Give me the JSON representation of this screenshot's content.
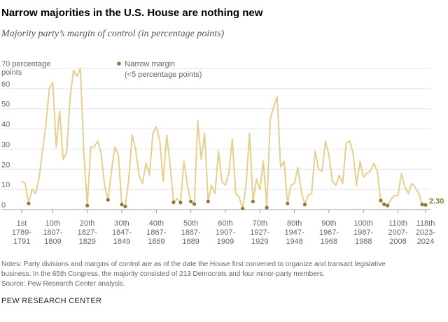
{
  "chart_data": {
    "type": "line",
    "title": "Narrow majorities in the U.S. House are nothing new",
    "subtitle": "Majority party’s margin of control (in percentage points)",
    "legend": [
      "Narrow margin",
      "(<5 percentage points)"
    ],
    "narrow_below": 5,
    "x": [
      1,
      2,
      3,
      4,
      5,
      6,
      7,
      8,
      9,
      10,
      11,
      12,
      13,
      14,
      15,
      16,
      17,
      18,
      19,
      20,
      21,
      22,
      23,
      24,
      25,
      26,
      27,
      28,
      29,
      30,
      31,
      32,
      33,
      34,
      35,
      36,
      37,
      38,
      39,
      40,
      41,
      42,
      43,
      44,
      45,
      46,
      47,
      48,
      49,
      50,
      51,
      52,
      53,
      54,
      55,
      56,
      57,
      58,
      59,
      60,
      61,
      62,
      63,
      64,
      65,
      66,
      67,
      68,
      69,
      70,
      71,
      72,
      73,
      74,
      75,
      76,
      77,
      78,
      79,
      80,
      81,
      82,
      83,
      84,
      85,
      86,
      87,
      88,
      89,
      90,
      91,
      92,
      93,
      94,
      95,
      96,
      97,
      98,
      99,
      100,
      101,
      102,
      103,
      104,
      105,
      106,
      107,
      108,
      109,
      110,
      111,
      112,
      113,
      114,
      115,
      116,
      117,
      118
    ],
    "series": [
      {
        "name": "Margin of control",
        "color": "#e5cf8c",
        "dot_color": "#8c7a3a",
        "values": [
          14,
          13,
          3,
          10,
          8,
          15,
          29,
          42,
          60,
          63,
          31,
          49,
          25,
          28,
          55,
          69,
          66,
          70,
          28,
          2,
          31,
          31,
          34,
          28,
          12,
          4.8,
          19,
          31,
          27,
          2.5,
          1.5,
          15,
          37,
          30,
          17,
          13,
          23,
          17,
          38,
          41,
          34,
          14,
          37,
          22,
          3.6,
          5.5,
          3.5,
          24,
          12,
          4,
          2.7,
          44,
          25,
          38,
          4,
          12,
          8,
          29,
          14,
          12,
          18,
          35,
          8,
          6,
          0.5,
          12,
          38,
          4,
          15,
          10,
          24,
          1,
          45,
          51,
          56,
          21,
          24,
          3,
          12,
          13,
          21,
          9,
          2.5,
          7,
          8,
          29,
          20,
          19,
          34,
          27,
          14,
          12,
          17,
          13,
          33,
          34,
          28,
          12,
          24,
          16,
          18,
          19,
          23,
          19,
          4.5,
          2.6,
          2,
          5,
          7,
          7,
          18,
          11,
          8,
          13,
          11,
          8,
          2.5,
          2.3
        ],
        "end_label": "2.30"
      }
    ],
    "xlim": [
      1,
      118
    ],
    "xticks": [
      {
        "value": 1,
        "label": [
          "1st",
          "1789-",
          "1791"
        ]
      },
      {
        "value": 10,
        "label": [
          "10th",
          "1807-",
          "1809"
        ]
      },
      {
        "value": 20,
        "label": [
          "20th",
          "1827-",
          "1829"
        ]
      },
      {
        "value": 30,
        "label": [
          "30th",
          "1847-",
          "1849"
        ]
      },
      {
        "value": 40,
        "label": [
          "40th",
          "1867-",
          "1869"
        ]
      },
      {
        "value": 50,
        "label": [
          "50th",
          "1887-",
          "1889"
        ]
      },
      {
        "value": 60,
        "label": [
          "60th",
          "1907-",
          "1909"
        ]
      },
      {
        "value": 70,
        "label": [
          "70th",
          "1927-",
          "1929"
        ]
      },
      {
        "value": 80,
        "label": [
          "80th",
          "1947-",
          "1948"
        ]
      },
      {
        "value": 90,
        "label": [
          "90th",
          "1967-",
          "1968"
        ]
      },
      {
        "value": 100,
        "label": [
          "100th",
          "1987-",
          "1988"
        ]
      },
      {
        "value": 110,
        "label": [
          "110th",
          "2007-",
          "2008"
        ]
      },
      {
        "value": 118,
        "label": [
          "118th",
          "2023-",
          "2024"
        ]
      }
    ],
    "ylim": [
      0,
      70
    ],
    "yticks": [
      0,
      10,
      20,
      30,
      40,
      50,
      60,
      {
        "value": 70,
        "label": [
          "70 percentage",
          "points"
        ]
      }
    ],
    "grid": true,
    "notes": [
      "Notes: Party divisions and margins of control are as of the date the House first convened to organize and transact legislative",
      "business. In the 65th Congress, the majority consisted of 213 Democrats and four minor-party members."
    ],
    "source": "Source: Pew Research Center analysis.",
    "credit": "PEW RESEARCH CENTER"
  }
}
